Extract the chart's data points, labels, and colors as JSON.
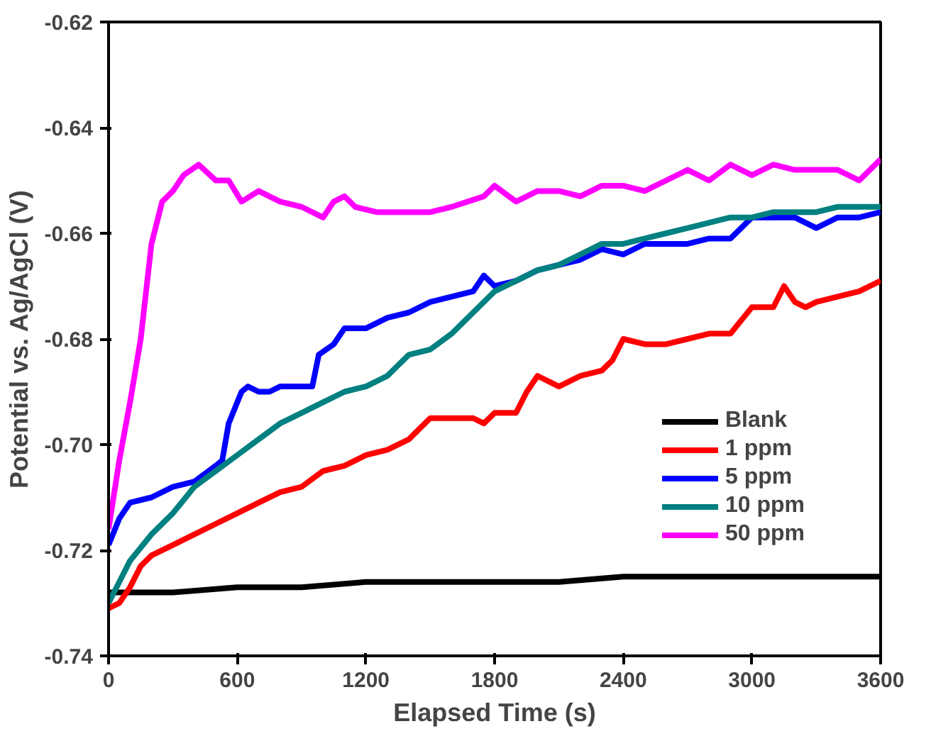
{
  "chart_data": {
    "type": "line",
    "xlabel": "Elapsed Time (s)",
    "ylabel": "Potential vs. Ag/AgCl (V)",
    "xlim": [
      0,
      3600
    ],
    "xticks": [
      0,
      600,
      1200,
      1800,
      2400,
      3000,
      3600
    ],
    "ylim": [
      -0.74,
      -0.62
    ],
    "yticks": [
      {
        "value": -0.74,
        "label": "-0.74"
      },
      {
        "value": -0.72,
        "label": "-0.72"
      },
      {
        "value": -0.7,
        "label": "-0.70"
      },
      {
        "value": -0.68,
        "label": "-0.68"
      },
      {
        "value": -0.66,
        "label": "-0.66"
      },
      {
        "value": -0.64,
        "label": "-0.64"
      },
      {
        "value": -0.62,
        "label": "-0.62"
      }
    ],
    "grid": false,
    "legend": "right",
    "series": [
      {
        "name": "Blank",
        "color": "#000000",
        "x": [
          0,
          300,
          600,
          900,
          1200,
          1500,
          1800,
          2100,
          2400,
          2700,
          3000,
          3300,
          3600
        ],
        "values": [
          -0.728,
          -0.728,
          -0.727,
          -0.727,
          -0.726,
          -0.726,
          -0.726,
          -0.726,
          -0.725,
          -0.725,
          -0.725,
          -0.725,
          -0.725
        ]
      },
      {
        "name": "1 ppm",
        "color": "#ff0000",
        "x": [
          0,
          50,
          100,
          150,
          200,
          300,
          400,
          500,
          600,
          700,
          800,
          900,
          1000,
          1100,
          1200,
          1300,
          1400,
          1450,
          1500,
          1600,
          1700,
          1750,
          1800,
          1900,
          1950,
          2000,
          2100,
          2200,
          2300,
          2350,
          2400,
          2500,
          2600,
          2700,
          2800,
          2900,
          3000,
          3100,
          3150,
          3200,
          3250,
          3300,
          3400,
          3500,
          3600
        ],
        "values": [
          -0.731,
          -0.73,
          -0.727,
          -0.723,
          -0.721,
          -0.719,
          -0.717,
          -0.715,
          -0.713,
          -0.711,
          -0.709,
          -0.708,
          -0.705,
          -0.704,
          -0.702,
          -0.701,
          -0.699,
          -0.697,
          -0.695,
          -0.695,
          -0.695,
          -0.696,
          -0.694,
          -0.694,
          -0.69,
          -0.687,
          -0.689,
          -0.687,
          -0.686,
          -0.684,
          -0.68,
          -0.681,
          -0.681,
          -0.68,
          -0.679,
          -0.679,
          -0.674,
          -0.674,
          -0.67,
          -0.673,
          -0.674,
          -0.673,
          -0.672,
          -0.671,
          -0.669
        ]
      },
      {
        "name": "5 ppm",
        "color": "#0000ff",
        "x": [
          0,
          50,
          100,
          200,
          300,
          400,
          500,
          530,
          560,
          620,
          650,
          700,
          750,
          800,
          900,
          950,
          980,
          1050,
          1100,
          1200,
          1300,
          1400,
          1500,
          1600,
          1700,
          1750,
          1800,
          1900,
          2000,
          2100,
          2200,
          2300,
          2400,
          2500,
          2600,
          2700,
          2800,
          2900,
          3000,
          3100,
          3200,
          3300,
          3400,
          3500,
          3600
        ],
        "values": [
          -0.719,
          -0.714,
          -0.711,
          -0.71,
          -0.708,
          -0.707,
          -0.704,
          -0.703,
          -0.696,
          -0.69,
          -0.689,
          -0.69,
          -0.69,
          -0.689,
          -0.689,
          -0.689,
          -0.683,
          -0.681,
          -0.678,
          -0.678,
          -0.676,
          -0.675,
          -0.673,
          -0.672,
          -0.671,
          -0.668,
          -0.67,
          -0.669,
          -0.667,
          -0.666,
          -0.665,
          -0.663,
          -0.664,
          -0.662,
          -0.662,
          -0.662,
          -0.661,
          -0.661,
          -0.657,
          -0.657,
          -0.657,
          -0.659,
          -0.657,
          -0.657,
          -0.656
        ]
      },
      {
        "name": "10 ppm",
        "color": "#008080",
        "x": [
          0,
          50,
          100,
          200,
          300,
          400,
          500,
          600,
          700,
          800,
          900,
          1000,
          1100,
          1200,
          1300,
          1400,
          1500,
          1600,
          1700,
          1800,
          1900,
          2000,
          2100,
          2200,
          2300,
          2400,
          2500,
          2600,
          2700,
          2800,
          2900,
          3000,
          3100,
          3200,
          3300,
          3400,
          3500,
          3600
        ],
        "values": [
          -0.73,
          -0.726,
          -0.722,
          -0.717,
          -0.713,
          -0.708,
          -0.705,
          -0.702,
          -0.699,
          -0.696,
          -0.694,
          -0.692,
          -0.69,
          -0.689,
          -0.687,
          -0.683,
          -0.682,
          -0.679,
          -0.675,
          -0.671,
          -0.669,
          -0.667,
          -0.666,
          -0.664,
          -0.662,
          -0.662,
          -0.661,
          -0.66,
          -0.659,
          -0.658,
          -0.657,
          -0.657,
          -0.656,
          -0.656,
          -0.656,
          -0.655,
          -0.655,
          -0.655
        ]
      },
      {
        "name": "50 ppm",
        "color": "#ff00ff",
        "x": [
          0,
          50,
          100,
          150,
          200,
          250,
          300,
          350,
          420,
          500,
          560,
          620,
          700,
          800,
          900,
          1000,
          1050,
          1100,
          1150,
          1250,
          1400,
          1500,
          1600,
          1750,
          1800,
          1900,
          2000,
          2100,
          2200,
          2300,
          2400,
          2500,
          2600,
          2700,
          2800,
          2900,
          3000,
          3100,
          3200,
          3300,
          3400,
          3500,
          3600
        ],
        "values": [
          -0.716,
          -0.703,
          -0.692,
          -0.68,
          -0.662,
          -0.654,
          -0.652,
          -0.649,
          -0.647,
          -0.65,
          -0.65,
          -0.654,
          -0.652,
          -0.654,
          -0.655,
          -0.657,
          -0.654,
          -0.653,
          -0.655,
          -0.656,
          -0.656,
          -0.656,
          -0.655,
          -0.653,
          -0.651,
          -0.654,
          -0.652,
          -0.652,
          -0.653,
          -0.651,
          -0.651,
          -0.652,
          -0.65,
          -0.648,
          -0.65,
          -0.647,
          -0.649,
          -0.647,
          -0.648,
          -0.648,
          -0.648,
          -0.65,
          -0.646
        ]
      }
    ]
  }
}
